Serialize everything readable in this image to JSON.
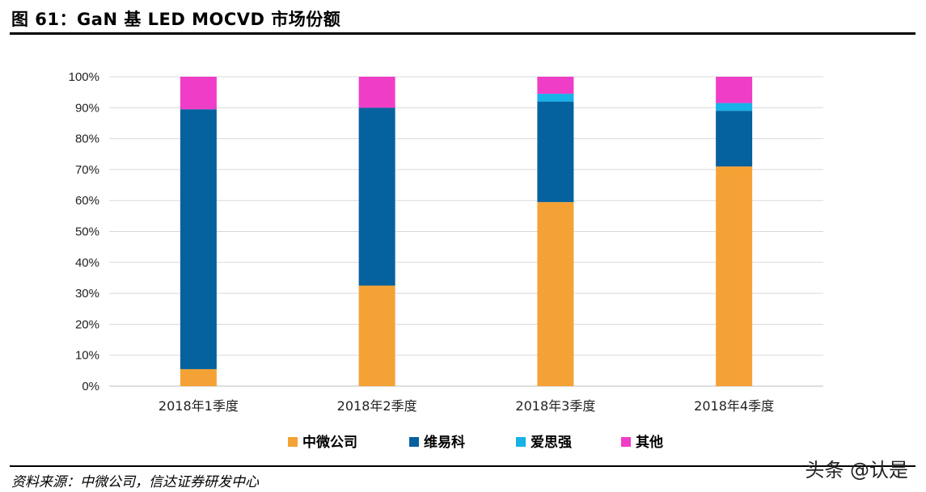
{
  "header": {
    "title": "图 61：GaN 基 LED MOCVD 市场份额"
  },
  "footer": {
    "source": "资料来源：中微公司，信达证券研发中心",
    "watermark": "头条 @认是"
  },
  "chart_data": {
    "type": "bar",
    "stacked": true,
    "categories": [
      "2018年1季度",
      "2018年2季度",
      "2018年3季度",
      "2018年4季度"
    ],
    "series": [
      {
        "name": "中微公司",
        "color": "#F4A236",
        "values": [
          5.5,
          32.5,
          59.5,
          71
        ]
      },
      {
        "name": "维易科",
        "color": "#06619F",
        "values": [
          84,
          57.5,
          32.5,
          18
        ]
      },
      {
        "name": "爱思强",
        "color": "#16B2E8",
        "values": [
          0,
          0,
          2.5,
          2.5
        ]
      },
      {
        "name": "其他",
        "color": "#F03DC7",
        "values": [
          10.5,
          10,
          5.5,
          8.5
        ]
      }
    ],
    "ylim": [
      0,
      100
    ],
    "yticks": [
      "0%",
      "10%",
      "20%",
      "30%",
      "40%",
      "50%",
      "60%",
      "70%",
      "80%",
      "90%",
      "100%"
    ],
    "grid": true,
    "legend_position": "bottom"
  }
}
